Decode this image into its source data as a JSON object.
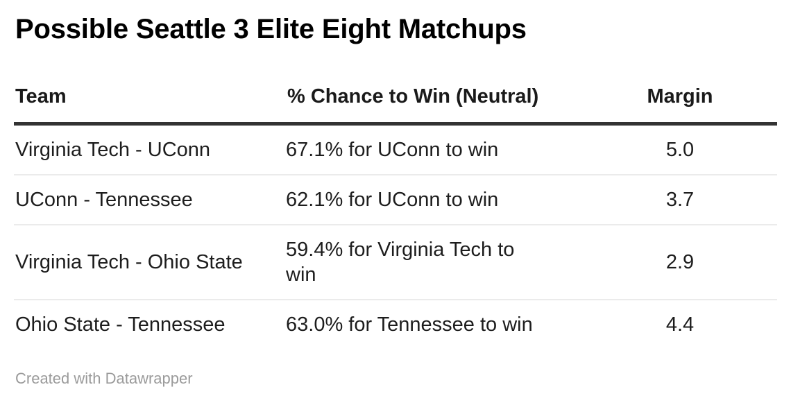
{
  "title": "Possible Seattle 3 Elite Eight Matchups",
  "table": {
    "columns": [
      {
        "label": "Team",
        "align": "left"
      },
      {
        "label": "% Chance to Win (Neutral)",
        "align": "left"
      },
      {
        "label": "Margin",
        "align": "center"
      }
    ],
    "rows": [
      {
        "team": "Virginia Tech - UConn",
        "chance": "67.1% for UConn to win",
        "margin": "5.0"
      },
      {
        "team": "UConn - Tennessee",
        "chance": "62.1% for UConn to win",
        "margin": "3.7"
      },
      {
        "team": "Virginia Tech - Ohio State",
        "chance": "59.4% for Virginia Tech to win",
        "margin": "2.9"
      },
      {
        "team": "Ohio State - Tennessee",
        "chance": "63.0% for Tennessee to win",
        "margin": "4.4"
      }
    ]
  },
  "footer": {
    "credit": "Created with Datawrapper"
  },
  "colors": {
    "title_color": "#000000",
    "header_text": "#1a1a1a",
    "body_text": "#1d1d1d",
    "header_rule": "#333333",
    "row_separator": "#ebebeb",
    "credit_color": "#9b9b9b",
    "background": "#ffffff"
  },
  "chart_data": {
    "type": "table",
    "title": "Possible Seattle 3 Elite Eight Matchups",
    "columns": [
      "Team",
      "% Chance to Win (Neutral)",
      "Margin"
    ],
    "rows": [
      [
        "Virginia Tech - UConn",
        "67.1% for UConn to win",
        5.0
      ],
      [
        "UConn - Tennessee",
        "62.1% for UConn to win",
        3.7
      ],
      [
        "Virginia Tech - Ohio State",
        "59.4% for Virginia Tech to win",
        2.9
      ],
      [
        "Ohio State - Tennessee",
        "63.0% for Tennessee to win",
        4.4
      ]
    ],
    "source": "Created with Datawrapper"
  }
}
